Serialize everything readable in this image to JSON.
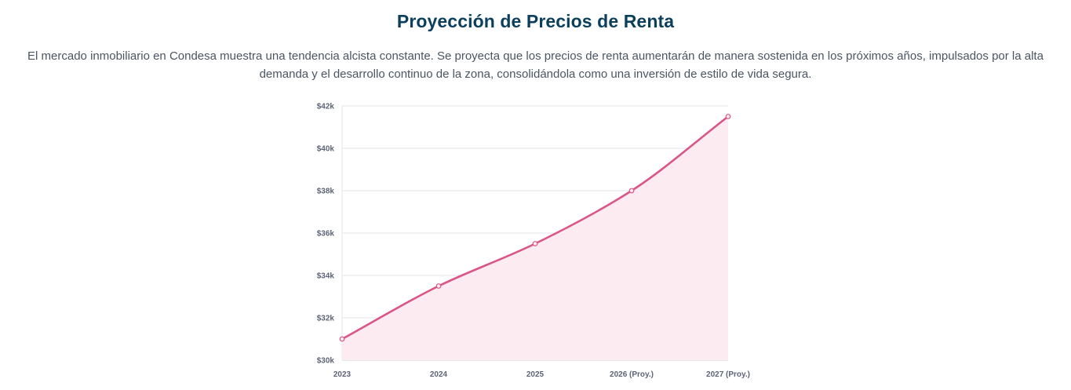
{
  "header": {
    "title": "Proyección de Precios de Renta",
    "description": "El mercado inmobiliario en Condesa muestra una tendencia alcista constante. Se proyecta que los precios de renta aumentarán de manera sostenida en los próximos años, impulsados por la alta demanda y el desarrollo continuo de la zona, consolidándola como una inversión de estilo de vida segura."
  },
  "colors": {
    "title": "#0b3f5c",
    "text": "#4a5563",
    "line": "#db5587",
    "fill": "#fcebf1",
    "grid": "#e3e5ea"
  },
  "chart_data": {
    "type": "area",
    "categories": [
      "2023",
      "2024",
      "2025",
      "2026 (Proy.)",
      "2027 (Proy.)"
    ],
    "series": [
      {
        "values": [
          31000,
          33500,
          35500,
          38000,
          41500
        ]
      }
    ],
    "ylim": [
      30000,
      42000
    ],
    "yticks": [
      30000,
      32000,
      34000,
      36000,
      38000,
      40000,
      42000
    ],
    "ytick_labels": [
      "$30k",
      "$32k",
      "$34k",
      "$36k",
      "$38k",
      "$40k",
      "$42k"
    ],
    "xlabel": "",
    "ylabel": "",
    "grid": true,
    "legend": "none"
  }
}
